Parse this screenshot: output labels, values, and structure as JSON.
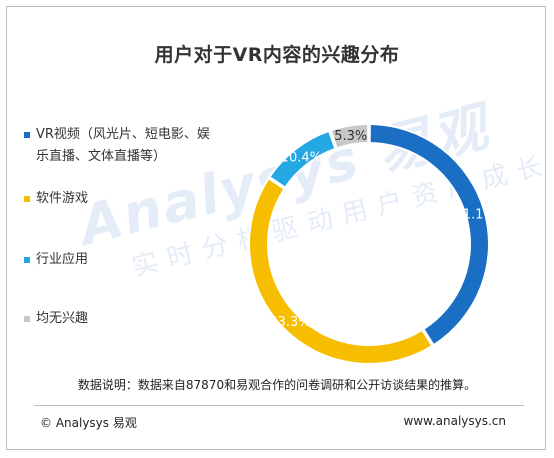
{
  "title": "用户对于VR内容的兴趣分布",
  "watermark": {
    "line1": "Analysys 易观",
    "line2": "实时分析驱动用户资产成长"
  },
  "chart_data": {
    "type": "pie",
    "style": "donut",
    "title": "用户对于VR内容的兴趣分布",
    "start_angle_deg": 0,
    "legend_position": "left",
    "slices": [
      {
        "label": "VR视频（风光片、短电影、娱乐直播、文体直播等）",
        "value": 41.1,
        "value_label": "41.1%",
        "color": "#1a6fc4"
      },
      {
        "label": "软件游戏",
        "value": 43.3,
        "value_label": "43.3%",
        "color": "#f7bd00"
      },
      {
        "label": "行业应用",
        "value": 10.4,
        "value_label": "10.4%",
        "color": "#23a8e3"
      },
      {
        "label": "均无兴趣",
        "value": 5.3,
        "value_label": "5.3%",
        "color": "#c8c8c8"
      }
    ]
  },
  "legend": {
    "items": [
      {
        "text": "VR视频（风光片、短电影、娱乐直播、文体直播等）",
        "color": "#1a6fc4"
      },
      {
        "text": "软件游戏",
        "color": "#f7bd00"
      },
      {
        "text": "行业应用",
        "color": "#23a8e3"
      },
      {
        "text": "均无兴趣",
        "color": "#c8c8c8"
      }
    ]
  },
  "note": "数据说明：数据来自87870和易观合作的问卷调研和公开访谈结果的推算。",
  "footer": {
    "copyright": "© Analysys 易观",
    "website": "www.analysys.cn"
  }
}
